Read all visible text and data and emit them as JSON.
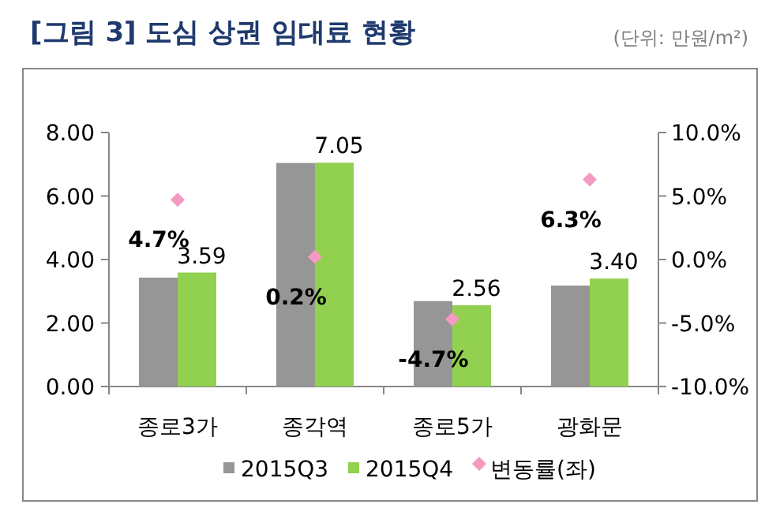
{
  "chart_data": {
    "type": "bar",
    "title": "[그림 3] 도심 상권 임대료 현황",
    "subtitle": "(단위: 만원/m²)",
    "categories": [
      "종로3가",
      "종각역",
      "종로5가",
      "광화문"
    ],
    "series": [
      {
        "name": "2015Q3",
        "color": "#969696",
        "values": [
          3.43,
          7.04,
          2.69,
          3.18
        ]
      },
      {
        "name": "2015Q4",
        "color": "#92d050",
        "values": [
          3.59,
          7.05,
          2.56,
          3.4
        ],
        "value_labels": [
          "3.59",
          "7.05",
          "2.56",
          "3.40"
        ]
      },
      {
        "name": "변동률(좌)",
        "type": "scatter",
        "axis": "y2",
        "marker": "diamond",
        "color": "#f49ac1",
        "values": [
          4.7,
          0.2,
          -4.7,
          6.3
        ],
        "value_labels": [
          "4.7%",
          "0.2%",
          "-4.7%",
          "6.3%"
        ]
      }
    ],
    "ylim": [
      0,
      8
    ],
    "yticks": [
      {
        "value": 0,
        "label": "0.00"
      },
      {
        "value": 2,
        "label": "2.00"
      },
      {
        "value": 4,
        "label": "4.00"
      },
      {
        "value": 6,
        "label": "6.00"
      },
      {
        "value": 8,
        "label": "8.00"
      }
    ],
    "y2lim": [
      -10,
      10
    ],
    "y2ticks": [
      {
        "value": -10,
        "label": "-10.0%"
      },
      {
        "value": -5,
        "label": "-5.0%"
      },
      {
        "value": 0,
        "label": "0.0%"
      },
      {
        "value": 5,
        "label": "5.0%"
      },
      {
        "value": 10,
        "label": "10.0%"
      }
    ],
    "legend": "bottom"
  }
}
